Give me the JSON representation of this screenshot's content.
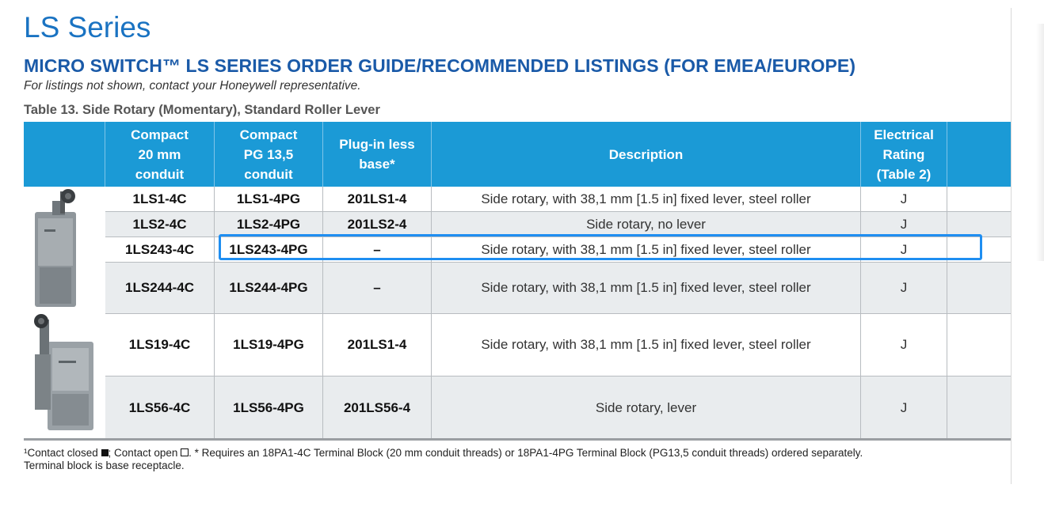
{
  "page_title": "LS Series",
  "section_title": "MICRO SWITCH™ LS SERIES ORDER GUIDE/RECOMMENDED LISTINGS (FOR EMEA/EUROPE)",
  "subtitle": "For listings not shown, contact your Honeywell representative.",
  "table_caption": "Table 13. Side Rotary (Momentary), Standard Roller Lever",
  "colors": {
    "header_bg": "#1b9ad6",
    "title": "#1a73c2",
    "highlight": "#1f8ef1",
    "row_gray": "#e9ecee"
  },
  "headers": {
    "compact20": "Compact\n20 mm\nconduit",
    "compactPG": "Compact\nPG 13,5\nconduit",
    "plugin": "Plug-in less\nbase*",
    "description": "Description",
    "rating": "Electrical\nRating\n(Table 2)"
  },
  "rows": [
    {
      "c20": "1LS1-4C",
      "pg": "1LS1-4PG",
      "plug": "201LS1-4",
      "desc": "Side rotary, with 38,1 mm [1.5 in] fixed lever, steel roller",
      "rating": "J"
    },
    {
      "c20": "1LS2-4C",
      "pg": "1LS2-4PG",
      "plug": "201LS2-4",
      "desc": "Side rotary, no lever",
      "rating": "J"
    },
    {
      "c20": "1LS243-4C",
      "pg": "1LS243-4PG",
      "plug": "–",
      "desc": "Side rotary, with 38,1 mm [1.5 in] fixed lever, steel roller",
      "rating": "J"
    },
    {
      "c20": "1LS244-4C",
      "pg": "1LS244-4PG",
      "plug": "–",
      "desc": "Side rotary, with 38,1 mm [1.5 in] fixed lever, steel roller",
      "rating": "J"
    },
    {
      "c20": "1LS19-4C",
      "pg": "1LS19-4PG",
      "plug": "201LS1-4",
      "desc": "Side rotary, with 38,1 mm [1.5 in] fixed lever, steel roller",
      "rating": "J"
    },
    {
      "c20": "1LS56-4C",
      "pg": "1LS56-4PG",
      "plug": "201LS56-4",
      "desc": "Side rotary, lever",
      "rating": "J"
    }
  ],
  "footnote": {
    "part1": "¹Contact closed ",
    "part2": "; Contact open ",
    "part3": ". * Requires an 18PA1-4C Terminal Block (20 mm conduit threads)  or 18PA1-4PG Terminal Block (PG13,5 conduit threads) ordered separately.",
    "line2": "Terminal block is base receptacle."
  },
  "icons": {
    "switch_image_1": "limit-switch-with-roller-lever",
    "switch_image_2": "limit-switch-with-roller-lever"
  }
}
